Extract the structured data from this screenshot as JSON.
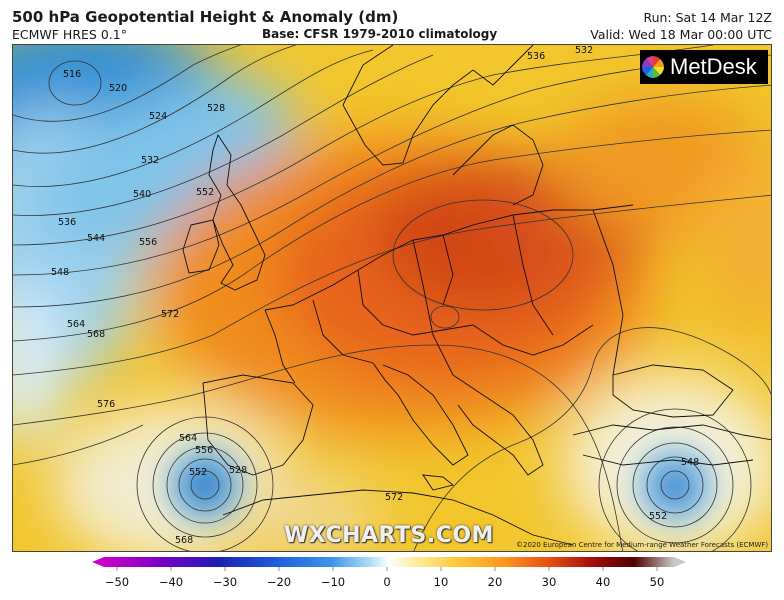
{
  "header": {
    "title": "500 hPa Geopotential Height & Anomaly (dm)",
    "model": "ECMWF HRES 0.1°",
    "base": "Base: CFSR 1979-2010 climatology",
    "run": "Run: Sat 14 Mar 12Z",
    "valid": "Valid: Wed 18 Mar 00:00 UTC"
  },
  "branding": {
    "logo_text": "MetDesk",
    "watermark": "WXCHARTS.COM",
    "copyright": "©2020 European Centre for Medium-range Weather Forecasts (ECMWF)"
  },
  "contour_labels": [
    "516",
    "520",
    "524",
    "528",
    "532",
    "536",
    "540",
    "544",
    "548",
    "552",
    "556",
    "564",
    "568",
    "572",
    "576",
    "564",
    "556",
    "552",
    "528",
    "572",
    "548",
    "552",
    "536",
    "532",
    "568"
  ],
  "colorbar": {
    "ticks": [
      "−50",
      "−40",
      "−30",
      "−20",
      "−10",
      "0",
      "10",
      "20",
      "30",
      "40",
      "50"
    ],
    "colors": [
      "#c800c8",
      "#7a00c8",
      "#1e1eb4",
      "#1e5adc",
      "#3c96e6",
      "#96d2f0",
      "#ffffff",
      "#ffe680",
      "#ffb428",
      "#ff7814",
      "#dc3c0a",
      "#a00a0a",
      "#500000",
      "#c8c8c8"
    ]
  }
}
